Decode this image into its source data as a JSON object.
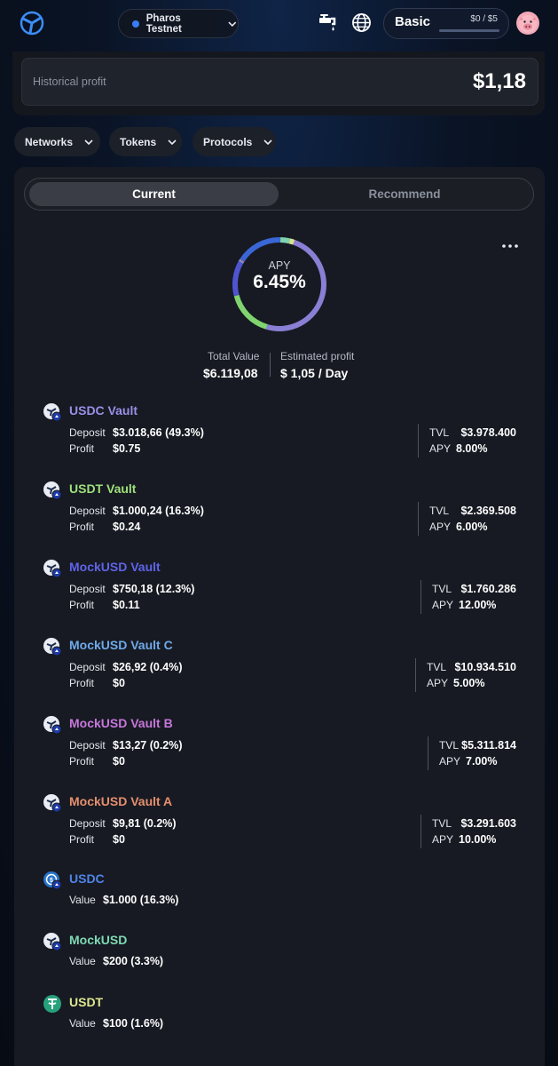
{
  "header": {
    "network": "Pharos Testnet",
    "plan": {
      "name": "Basic",
      "usage": "$0 / $5",
      "usage_fraction": 0
    }
  },
  "profit": {
    "label": "Historical profit",
    "value": "$1,18"
  },
  "filters": [
    "Networks",
    "Tokens",
    "Protocols"
  ],
  "tabs": [
    "Current",
    "Recommend"
  ],
  "active_tab": "Current",
  "apy": {
    "label": "APY",
    "value": "6.45%",
    "segments": [
      {
        "share": 49.3,
        "color": "#8a7fd4"
      },
      {
        "share": 16.3,
        "color": "#7fd46f"
      },
      {
        "share": 12.3,
        "color": "#4f55cf"
      },
      {
        "share": 0.4,
        "color": "#6fa7e6"
      },
      {
        "share": 0.2,
        "color": "#c26fd0"
      },
      {
        "share": 0.2,
        "color": "#e28a6c"
      },
      {
        "share": 16.3,
        "color": "#3a66d6"
      },
      {
        "share": 3.3,
        "color": "#7fd4b0"
      },
      {
        "share": 1.6,
        "color": "#d9e38c"
      }
    ]
  },
  "summary": {
    "total_value_label": "Total Value",
    "total_value": "$6.119,08",
    "est_profit_label": "Estimated profit",
    "est_profit": "$ 1,05 / Day"
  },
  "vaults": [
    {
      "name": "USDC Vault",
      "color": "#9a8fe8",
      "deposit": "$3.018,66 (49.3%)",
      "profit": "$0.75",
      "tvl": "$3.978.400",
      "apy": "8.00%"
    },
    {
      "name": "USDT Vault",
      "color": "#9fe07c",
      "deposit": "$1.000,24 (16.3%)",
      "profit": "$0.24",
      "tvl": "$2.369.508",
      "apy": "6.00%"
    },
    {
      "name": "MockUSD Vault",
      "color": "#5f63e8",
      "deposit": "$750,18 (12.3%)",
      "profit": "$0.11",
      "tvl": "$1.760.286",
      "apy": "12.00%"
    },
    {
      "name": "MockUSD Vault C",
      "color": "#6fa9ea",
      "deposit": "$26,92 (0.4%)",
      "profit": "$0",
      "tvl": "$10.934.510",
      "apy": "5.00%"
    },
    {
      "name": "MockUSD Vault B",
      "color": "#c777db",
      "deposit": "$13,27 (0.2%)",
      "profit": "$0",
      "tvl": "$5.311.814",
      "apy": "7.00%"
    },
    {
      "name": "MockUSD Vault A",
      "color": "#e58f6e",
      "deposit": "$9,81 (0.2%)",
      "profit": "$0",
      "tvl": "$3.291.603",
      "apy": "10.00%"
    }
  ],
  "holdings": [
    {
      "name": "USDC",
      "color": "#4f84e8",
      "value": "$1.000 (16.3%)"
    },
    {
      "name": "MockUSD",
      "color": "#7fd9b4",
      "value": "$200 (3.3%)"
    },
    {
      "name": "USDT",
      "color": "#dde68f",
      "value": "$100 (1.6%)"
    }
  ],
  "labels": {
    "deposit": "Deposit",
    "profit": "Profit",
    "tvl": "TVL",
    "apy": "APY",
    "value": "Value"
  }
}
